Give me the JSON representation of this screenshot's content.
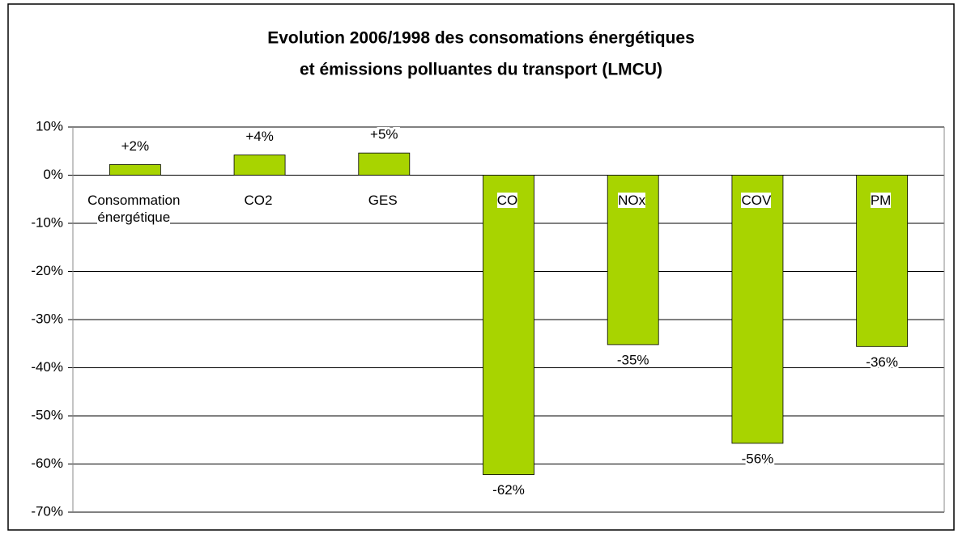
{
  "chart_data": {
    "type": "bar",
    "title": [
      "Evolution 2006/1998 des consomations énergétiques",
      "et émissions polluantes du transport (LMCU)"
    ],
    "categories": [
      "Consommation énergétique",
      "CO2",
      "GES",
      "CO",
      "NOx",
      "COV",
      "PM"
    ],
    "values": [
      2.2,
      4.2,
      4.6,
      -62.2,
      -35.2,
      -55.7,
      -35.6
    ],
    "value_labels": [
      "+2%",
      "+4%",
      "+5%",
      "-62%",
      "-35%",
      "-56%",
      "-36%"
    ],
    "color": "#a8d400",
    "ylim": [
      -70,
      10
    ],
    "yticks": [
      {
        "value": -70,
        "label": "-70%"
      },
      {
        "value": -60,
        "label": "-60%"
      },
      {
        "value": -50,
        "label": "-50%"
      },
      {
        "value": -40,
        "label": "-40%"
      },
      {
        "value": -30,
        "label": "-30%"
      },
      {
        "value": -20,
        "label": "-20%"
      },
      {
        "value": -10,
        "label": "-10%"
      },
      {
        "value": 0,
        "label": "0%"
      },
      {
        "value": 10,
        "label": "10%"
      }
    ],
    "grid": true
  }
}
